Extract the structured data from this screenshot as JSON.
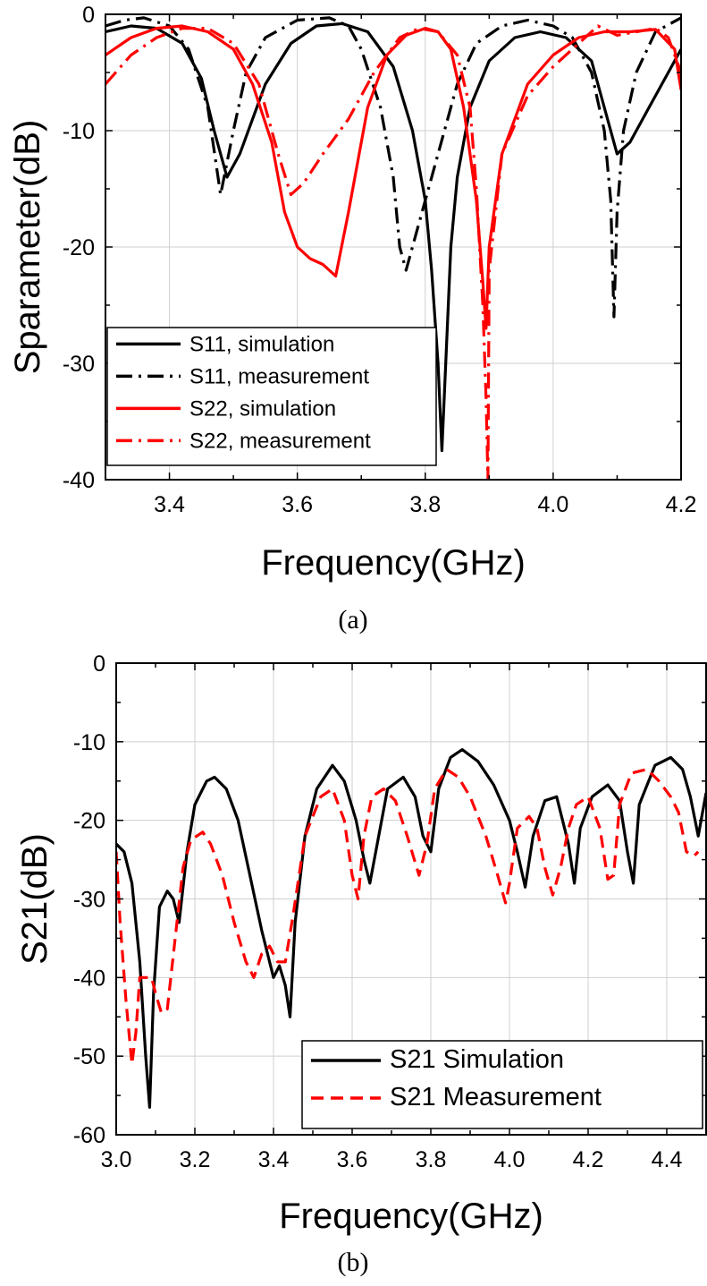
{
  "chart_data": [
    {
      "panel": "a",
      "type": "line",
      "caption": "(a)",
      "xlabel": "Frequency(GHz)",
      "ylabel": "Sparameter(dB)",
      "xlim": [
        3.3,
        4.2
      ],
      "ylim": [
        -40,
        0
      ],
      "xticks": [
        3.4,
        3.6,
        3.8,
        4.0,
        4.2
      ],
      "xtick_labels": [
        "3.4",
        "3.6",
        "3.8",
        "4.0",
        "4.2"
      ],
      "yticks": [
        0,
        -10,
        -20,
        -30,
        -40
      ],
      "ytick_labels": [
        "0",
        "-10",
        "-20",
        "-30",
        "-40"
      ],
      "grid": true,
      "legend_position": "bottom-left",
      "series": [
        {
          "name": "S11, simulation",
          "color": "#000000",
          "dash": "solid",
          "x": [
            3.3,
            3.34,
            3.38,
            3.42,
            3.45,
            3.47,
            3.49,
            3.51,
            3.55,
            3.59,
            3.63,
            3.67,
            3.71,
            3.75,
            3.78,
            3.8,
            3.81,
            3.82,
            3.826,
            3.832,
            3.84,
            3.85,
            3.87,
            3.9,
            3.94,
            3.98,
            4.02,
            4.06,
            4.08,
            4.1,
            4.12,
            4.15,
            4.18,
            4.2
          ],
          "y": [
            -1.5,
            -1.0,
            -1.2,
            -2.5,
            -5.5,
            -10.0,
            -14.0,
            -12.0,
            -6.0,
            -2.5,
            -1.0,
            -0.8,
            -1.5,
            -4.5,
            -10.0,
            -16.0,
            -22.0,
            -30.0,
            -37.5,
            -30.0,
            -20.0,
            -14.0,
            -8.0,
            -4.0,
            -2.0,
            -1.5,
            -2.0,
            -4.0,
            -8.0,
            -12.0,
            -11.0,
            -8.0,
            -5.0,
            -3.0
          ]
        },
        {
          "name": "S11, measurement",
          "color": "#000000",
          "dash": "dashdot",
          "x": [
            3.3,
            3.33,
            3.36,
            3.4,
            3.43,
            3.46,
            3.48,
            3.5,
            3.52,
            3.55,
            3.6,
            3.65,
            3.68,
            3.7,
            3.73,
            3.75,
            3.76,
            3.77,
            3.79,
            3.82,
            3.85,
            3.88,
            3.92,
            3.96,
            4.0,
            4.03,
            4.06,
            4.08,
            4.09,
            4.095,
            4.1,
            4.11,
            4.13,
            4.16,
            4.2
          ],
          "y": [
            -1.0,
            -0.5,
            -0.3,
            -1.0,
            -3.0,
            -8.0,
            -15.5,
            -10.0,
            -5.0,
            -2.0,
            -0.5,
            -0.3,
            -1.0,
            -3.0,
            -8.0,
            -14.0,
            -20.0,
            -22.0,
            -18.0,
            -12.0,
            -6.0,
            -2.5,
            -1.0,
            -0.5,
            -1.0,
            -2.0,
            -5.0,
            -10.0,
            -16.0,
            -26.0,
            -17.0,
            -10.0,
            -5.0,
            -1.5,
            -0.3
          ]
        },
        {
          "name": "S22, simulation",
          "color": "#ff0000",
          "dash": "solid",
          "x": [
            3.3,
            3.34,
            3.38,
            3.42,
            3.46,
            3.5,
            3.53,
            3.56,
            3.58,
            3.6,
            3.62,
            3.64,
            3.66,
            3.68,
            3.71,
            3.74,
            3.77,
            3.8,
            3.82,
            3.84,
            3.86,
            3.88,
            3.89,
            3.895,
            3.9,
            3.92,
            3.96,
            4.0,
            4.04,
            4.08,
            4.12,
            4.16,
            4.19,
            4.2
          ],
          "y": [
            -3.5,
            -2.0,
            -1.2,
            -1.0,
            -1.5,
            -3.0,
            -6.0,
            -11.0,
            -17.0,
            -20.0,
            -21.0,
            -21.5,
            -22.5,
            -17.0,
            -8.0,
            -3.5,
            -1.8,
            -1.2,
            -1.5,
            -3.0,
            -8.0,
            -16.0,
            -23.0,
            -27.0,
            -20.0,
            -12.0,
            -6.0,
            -3.5,
            -2.0,
            -1.5,
            -1.5,
            -1.3,
            -3.0,
            -6.5
          ]
        },
        {
          "name": "S22, measurement",
          "color": "#ff0000",
          "dash": "dashdot",
          "x": [
            3.3,
            3.34,
            3.38,
            3.42,
            3.46,
            3.5,
            3.54,
            3.57,
            3.59,
            3.61,
            3.64,
            3.68,
            3.72,
            3.76,
            3.79,
            3.82,
            3.85,
            3.87,
            3.88,
            3.89,
            3.895,
            3.898,
            3.9,
            3.92,
            3.96,
            4.0,
            4.04,
            4.07,
            4.1,
            4.13,
            4.16,
            4.18,
            4.2
          ],
          "y": [
            -6.0,
            -3.5,
            -2.0,
            -1.2,
            -1.2,
            -2.5,
            -6.0,
            -12.0,
            -15.5,
            -14.5,
            -12.0,
            -9.0,
            -5.0,
            -2.0,
            -1.2,
            -1.5,
            -3.5,
            -8.0,
            -15.0,
            -25.0,
            -33.0,
            -40.0,
            -22.0,
            -12.0,
            -7.0,
            -4.5,
            -2.5,
            -1.0,
            -1.8,
            -1.5,
            -1.2,
            -2.0,
            -5.0
          ]
        }
      ]
    },
    {
      "panel": "b",
      "type": "line",
      "caption": "(b)",
      "xlabel": "Frequency(GHz)",
      "ylabel": "S21(dB)",
      "xlim": [
        3.0,
        4.5
      ],
      "ylim": [
        -60,
        0
      ],
      "xticks": [
        3.0,
        3.2,
        3.4,
        3.6,
        3.8,
        4.0,
        4.2,
        4.4
      ],
      "xtick_labels": [
        "3.0",
        "3.2",
        "3.4",
        "3.6",
        "3.8",
        "4.0",
        "4.2",
        "4.4"
      ],
      "yticks": [
        0,
        -10,
        -20,
        -30,
        -40,
        -50,
        -60
      ],
      "ytick_labels": [
        "0",
        "-10",
        "-20",
        "-30",
        "-40",
        "-50",
        "-60"
      ],
      "grid": true,
      "legend_position": "bottom-right",
      "series": [
        {
          "name": "S21 Simulation",
          "color": "#000000",
          "dash": "solid",
          "x": [
            3.0,
            3.02,
            3.04,
            3.06,
            3.075,
            3.085,
            3.095,
            3.11,
            3.13,
            3.145,
            3.16,
            3.18,
            3.2,
            3.23,
            3.25,
            3.28,
            3.31,
            3.34,
            3.37,
            3.4,
            3.415,
            3.43,
            3.442,
            3.455,
            3.48,
            3.51,
            3.55,
            3.58,
            3.61,
            3.63,
            3.645,
            3.66,
            3.69,
            3.73,
            3.76,
            3.78,
            3.8,
            3.82,
            3.85,
            3.88,
            3.92,
            3.96,
            4.0,
            4.02,
            4.04,
            4.06,
            4.09,
            4.12,
            4.15,
            4.165,
            4.18,
            4.21,
            4.25,
            4.28,
            4.3,
            4.315,
            4.33,
            4.37,
            4.41,
            4.44,
            4.46,
            4.48,
            4.5
          ],
          "y": [
            -23.0,
            -24.0,
            -28.0,
            -38.0,
            -50.0,
            -56.5,
            -42.0,
            -31.0,
            -29.0,
            -30.0,
            -33.0,
            -24.0,
            -18.0,
            -15.0,
            -14.5,
            -16.0,
            -20.0,
            -27.0,
            -34.0,
            -40.0,
            -38.5,
            -41.0,
            -45.0,
            -33.0,
            -22.0,
            -16.0,
            -13.0,
            -15.0,
            -20.0,
            -25.0,
            -28.0,
            -24.0,
            -16.0,
            -14.5,
            -17.0,
            -22.0,
            -24.0,
            -16.0,
            -12.0,
            -11.0,
            -12.5,
            -15.5,
            -20.0,
            -24.0,
            -28.5,
            -22.0,
            -17.5,
            -17.0,
            -23.0,
            -28.0,
            -21.0,
            -17.0,
            -15.5,
            -17.5,
            -24.0,
            -28.0,
            -18.0,
            -13.0,
            -12.0,
            -13.5,
            -17.0,
            -22.0,
            -16.5
          ]
        },
        {
          "name": "S21 Measurement",
          "color": "#ff0000",
          "dash": "dashed",
          "x": [
            3.0,
            3.01,
            3.025,
            3.04,
            3.05,
            3.06,
            3.075,
            3.09,
            3.1,
            3.115,
            3.13,
            3.15,
            3.17,
            3.19,
            3.22,
            3.24,
            3.27,
            3.3,
            3.33,
            3.35,
            3.37,
            3.39,
            3.41,
            3.43,
            3.45,
            3.48,
            3.52,
            3.55,
            3.58,
            3.6,
            3.615,
            3.63,
            3.65,
            3.68,
            3.71,
            3.74,
            3.77,
            3.79,
            3.81,
            3.84,
            3.87,
            3.9,
            3.94,
            3.97,
            3.99,
            4.0,
            4.02,
            4.05,
            4.07,
            4.09,
            4.11,
            4.13,
            4.15,
            4.17,
            4.2,
            4.23,
            4.25,
            4.265,
            4.28,
            4.31,
            4.35,
            4.38,
            4.41,
            4.43,
            4.45,
            4.47,
            4.48
          ],
          "y": [
            -24.0,
            -33.0,
            -43.0,
            -51.0,
            -47.0,
            -40.0,
            -40.0,
            -40.0,
            -42.0,
            -44.5,
            -44.0,
            -35.0,
            -26.0,
            -22.5,
            -21.5,
            -23.0,
            -27.0,
            -33.0,
            -38.0,
            -40.0,
            -37.0,
            -36.0,
            -38.0,
            -38.0,
            -32.0,
            -22.0,
            -17.0,
            -16.0,
            -20.0,
            -27.0,
            -30.0,
            -22.0,
            -17.0,
            -16.0,
            -17.5,
            -22.0,
            -27.0,
            -23.0,
            -16.0,
            -13.5,
            -14.5,
            -17.0,
            -22.0,
            -27.0,
            -30.5,
            -28.0,
            -21.0,
            -19.5,
            -21.0,
            -26.0,
            -29.5,
            -26.0,
            -21.0,
            -18.0,
            -17.0,
            -21.0,
            -27.5,
            -27.0,
            -18.0,
            -14.0,
            -13.5,
            -15.0,
            -17.0,
            -19.0,
            -24.0,
            -24.5,
            -24.0
          ]
        }
      ]
    }
  ]
}
